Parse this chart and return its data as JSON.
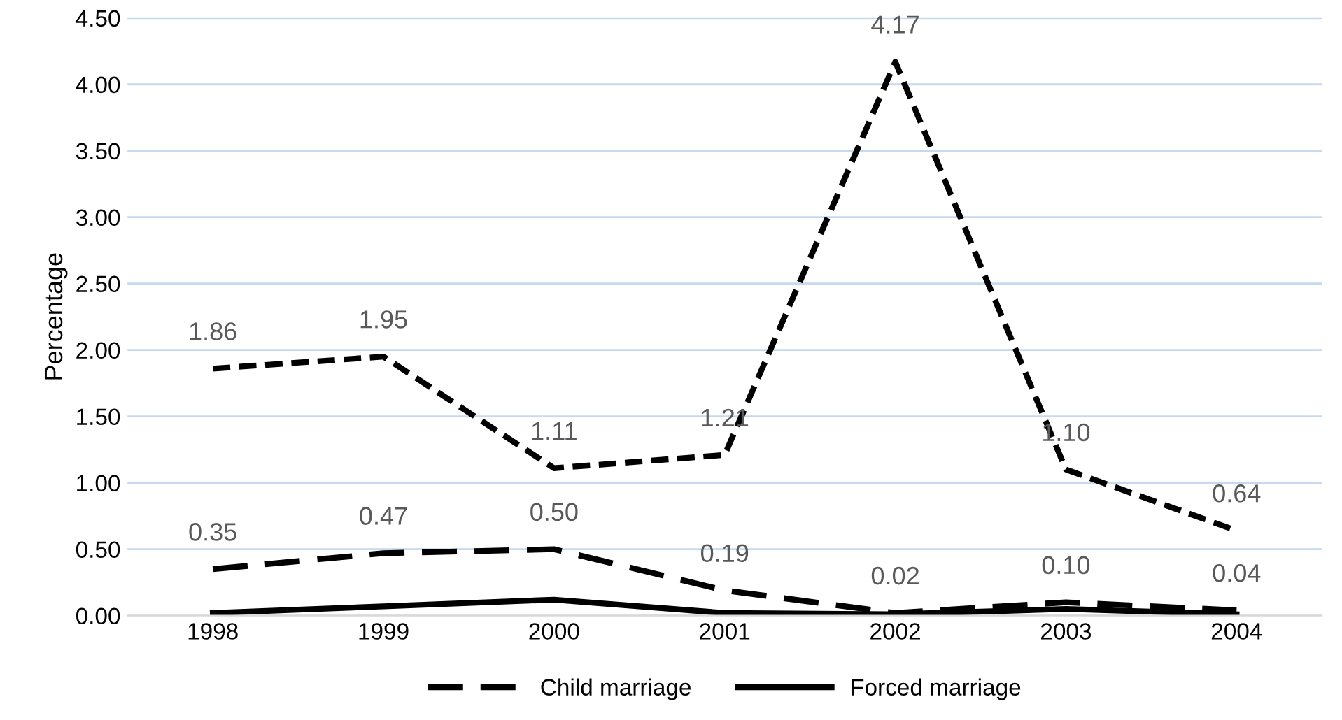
{
  "chart_data": {
    "type": "line",
    "ylabel": "Percentage",
    "categories": [
      "1998",
      "1999",
      "2000",
      "2001",
      "2002",
      "2003",
      "2004"
    ],
    "series": [
      {
        "color": "#000000",
        "line_style": "dashed",
        "values": [
          1.86,
          1.95,
          1.11,
          1.21,
          4.17,
          1.1,
          0.64
        ],
        "value_labels": [
          "1.86",
          "1.95",
          "1.11",
          "1.21",
          "4.17",
          "1.10",
          "0.64"
        ]
      },
      {
        "name": "Child marriage",
        "color": "#000000",
        "line_style": "dashed",
        "values": [
          0.35,
          0.47,
          0.5,
          0.19,
          0.02,
          0.1,
          0.04
        ],
        "value_labels": [
          "0.35",
          "0.47",
          "0.50",
          "0.19",
          "0.02",
          "0.10",
          "0.04"
        ]
      },
      {
        "name": "Forced marriage",
        "color": "#000000",
        "line_style": "solid",
        "values": [
          0.02,
          0.07,
          0.12,
          0.02,
          0.01,
          0.05,
          0.01
        ]
      }
    ],
    "ylim": [
      0,
      4.5
    ],
    "yticks": [
      {
        "value": 0,
        "label": "0.00"
      },
      {
        "value": 0.5,
        "label": "0.50"
      },
      {
        "value": 1,
        "label": "1.00"
      },
      {
        "value": 1.5,
        "label": "1.50"
      },
      {
        "value": 2,
        "label": "2.00"
      },
      {
        "value": 2.5,
        "label": "2.50"
      },
      {
        "value": 3,
        "label": "3.00"
      },
      {
        "value": 3.5,
        "label": "3.50"
      },
      {
        "value": 4,
        "label": "4.00"
      },
      {
        "value": 4.5,
        "label": "4.50"
      }
    ],
    "grid": "y",
    "legend": "bottom"
  }
}
